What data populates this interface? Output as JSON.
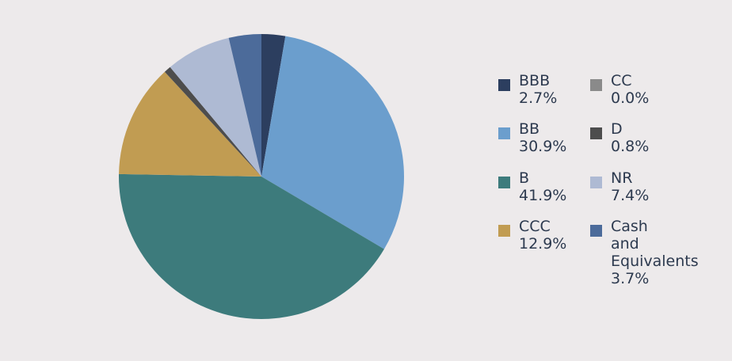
{
  "chart_data": {
    "type": "pie",
    "categories": [
      "BBB",
      "BB",
      "B",
      "CCC",
      "CC",
      "D",
      "NR",
      "Cash and Equivalents"
    ],
    "values": [
      2.7,
      30.9,
      41.9,
      12.9,
      0.0,
      0.8,
      7.4,
      3.7
    ],
    "value_labels": [
      "2.7%",
      "30.9%",
      "41.9%",
      "12.9%",
      "0.0%",
      "0.8%",
      "7.4%",
      "3.7%"
    ],
    "colors": [
      "#2c3e5f",
      "#6b9ecd",
      "#3d7b7c",
      "#c19c52",
      "#8a8a8a",
      "#4d4d4d",
      "#aebad3",
      "#4c6b9a"
    ]
  }
}
